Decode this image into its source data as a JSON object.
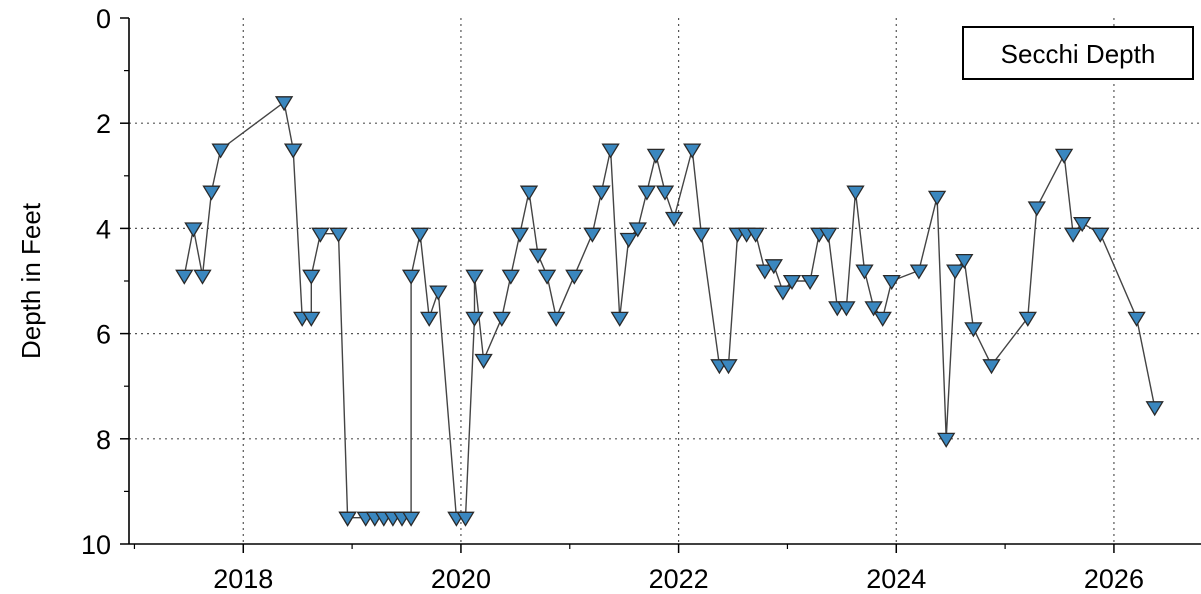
{
  "chart_data": {
    "type": "scatter",
    "title": "",
    "xlabel": "",
    "ylabel": "Depth in Feet",
    "legend": {
      "label": "Secchi Depth",
      "placement": "top-right"
    },
    "xlim": [
      2016.95,
      2026.8
    ],
    "ylim": [
      0,
      10
    ],
    "y_inverted": true,
    "grid": true,
    "x_tick_labels": [
      "2018",
      "2020",
      "2022",
      "2024",
      "2026"
    ],
    "y_tick_labels": [
      "0",
      "2",
      "4",
      "6",
      "8",
      "10"
    ],
    "colors": {
      "marker_fill": "#3a87bf",
      "marker_stroke": "#2a2a2a",
      "line": "#444444"
    },
    "series": [
      {
        "name": "Secchi Depth",
        "marker": "triangle-down",
        "x": [
          "2017-06",
          "2017-07",
          "2017-08",
          "2017-09",
          "2017-10",
          "2018-05",
          "2018-06",
          "2018-06",
          "2018-07",
          "2018-08",
          "2018-08",
          "2018-09",
          "2018-11",
          "2018-12",
          "2018-12",
          "2019-02",
          "2019-03",
          "2019-04",
          "2019-05",
          "2019-06",
          "2019-07",
          "2019-07",
          "2019-08",
          "2019-09",
          "2019-10",
          "2019-12",
          "2020-01",
          "2020-02",
          "2020-02",
          "2020-03",
          "2020-05",
          "2020-06",
          "2020-07",
          "2020-08",
          "2020-09",
          "2020-10",
          "2020-11",
          "2021-01",
          "2021-03",
          "2021-04",
          "2021-05",
          "2021-06",
          "2021-07",
          "2021-08",
          "2021-09",
          "2021-10",
          "2021-11",
          "2021-12",
          "2022-02",
          "2022-03",
          "2022-05",
          "2022-06",
          "2022-07",
          "2022-08",
          "2022-09",
          "2022-10",
          "2022-11",
          "2022-12",
          "2023-01",
          "2023-03",
          "2023-04",
          "2023-05",
          "2023-06",
          "2023-07",
          "2023-08",
          "2023-09",
          "2023-10",
          "2023-11",
          "2023-12",
          "2024-03",
          "2024-05",
          "2024-06",
          "2024-07",
          "2024-08",
          "2024-09",
          "2024-11",
          "2025-03",
          "2025-04",
          "2025-07",
          "2025-08",
          "2025-09",
          "2025-11",
          "2026-03",
          "2026-05"
        ],
        "y": [
          4.9,
          4.0,
          4.9,
          3.3,
          2.5,
          1.6,
          2.5,
          2.5,
          5.7,
          5.7,
          4.9,
          4.1,
          4.1,
          9.5,
          9.5,
          9.5,
          9.5,
          9.5,
          9.5,
          9.5,
          9.5,
          4.9,
          4.1,
          5.7,
          5.2,
          9.5,
          9.5,
          5.7,
          4.9,
          6.5,
          5.7,
          4.9,
          4.1,
          3.3,
          4.5,
          4.9,
          5.7,
          4.9,
          4.1,
          3.3,
          2.5,
          5.7,
          4.2,
          4.0,
          3.3,
          2.6,
          3.3,
          3.8,
          2.5,
          4.1,
          6.6,
          6.6,
          4.1,
          4.1,
          4.1,
          4.8,
          4.7,
          5.2,
          5.0,
          5.0,
          4.1,
          4.1,
          5.5,
          5.5,
          3.3,
          4.8,
          5.5,
          5.7,
          5.0,
          4.8,
          3.4,
          8.0,
          4.8,
          4.6,
          5.9,
          6.6,
          5.7,
          3.6,
          2.6,
          4.1,
          3.9,
          4.1,
          5.7,
          7.4
        ]
      }
    ]
  }
}
